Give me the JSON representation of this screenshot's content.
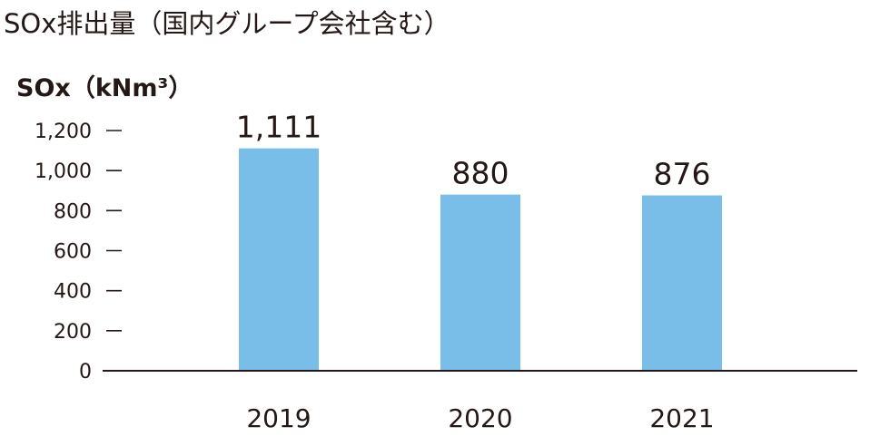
{
  "chart_data": {
    "type": "bar",
    "title": "SOx排出量（国内グループ会社含む）",
    "ylabel": "SOx（kNm³）",
    "xlabel": "",
    "categories": [
      "2019",
      "2020",
      "2021"
    ],
    "series": [
      {
        "values": [
          1111,
          880,
          876
        ]
      }
    ],
    "data_labels": [
      "1,111",
      "880",
      "876"
    ],
    "ylim": [
      0,
      1200
    ],
    "yticks": [
      0,
      200,
      400,
      600,
      800,
      1000,
      1200
    ],
    "ytick_labels": [
      "0",
      "200",
      "400",
      "600",
      "800",
      "1,000",
      "1,200"
    ],
    "grid": false,
    "legend": "none",
    "colors": {
      "bar": "#79bee8",
      "axis": "#231815",
      "text": "#231815"
    }
  }
}
